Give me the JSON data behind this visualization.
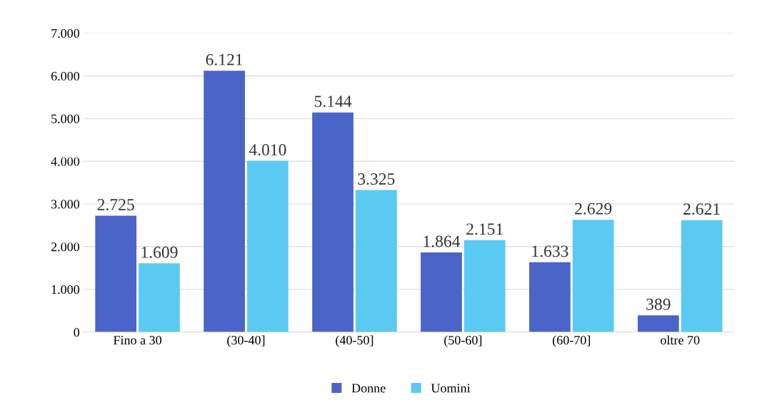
{
  "chart_data": {
    "type": "bar",
    "categories": [
      "Fino a 30",
      "(30-40]",
      "(40-50]",
      "(50-60]",
      "(60-70]",
      "oltre 70"
    ],
    "series": [
      {
        "name": "Donne",
        "color": "#4a64c8",
        "values": [
          2725,
          6121,
          5144,
          1864,
          1633,
          389
        ],
        "value_labels": [
          "2.725",
          "6.121",
          "5.144",
          "1.864",
          "1.633",
          "389"
        ]
      },
      {
        "name": "Uomini",
        "color": "#5bcaf2",
        "values": [
          1609,
          4010,
          3325,
          2151,
          2629,
          2621
        ],
        "value_labels": [
          "1.609",
          "4.010",
          "3.325",
          "2.151",
          "2.629",
          "2.621"
        ]
      }
    ],
    "ylim": [
      0,
      7000
    ],
    "yticks": [
      {
        "value": 0,
        "label": "0"
      },
      {
        "value": 1000,
        "label": "1.000"
      },
      {
        "value": 2000,
        "label": "2.000"
      },
      {
        "value": 3000,
        "label": "3.000"
      },
      {
        "value": 4000,
        "label": "4.000"
      },
      {
        "value": 5000,
        "label": "5.000"
      },
      {
        "value": 6000,
        "label": "6.000"
      },
      {
        "value": 7000,
        "label": "7.000"
      }
    ],
    "grid": "y",
    "legend": "bottom"
  }
}
